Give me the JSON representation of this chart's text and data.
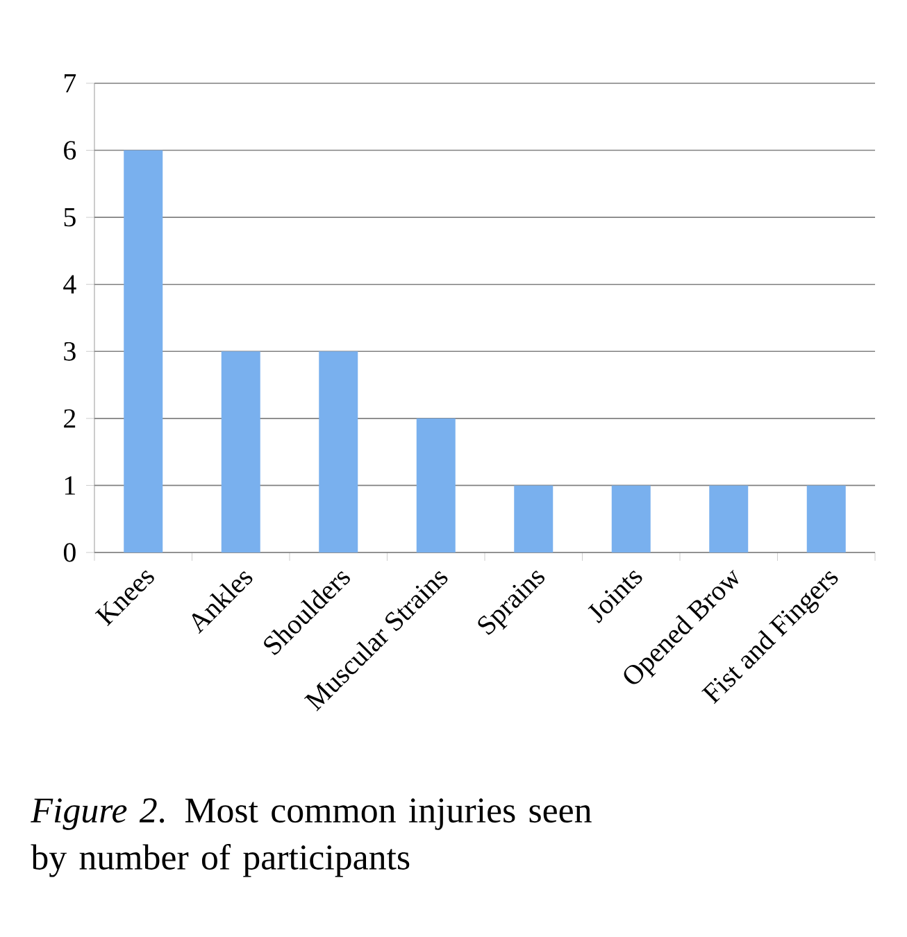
{
  "chart_data": {
    "type": "bar",
    "categories": [
      "Knees",
      "Ankles",
      "Shoulders",
      "Muscular Strains",
      "Sprains",
      "Joints",
      "Opened Brow",
      "Fist and Fingers"
    ],
    "values": [
      6,
      3,
      3,
      2,
      1,
      1,
      1,
      1
    ],
    "color": "#79b0ee",
    "ylim": [
      0,
      7
    ],
    "yticks": [
      0,
      1,
      2,
      3,
      4,
      5,
      6,
      7
    ],
    "grid": "y",
    "annotations": [
      "*Figure 2*. Most common injuries seen by number of participants"
    ]
  }
}
